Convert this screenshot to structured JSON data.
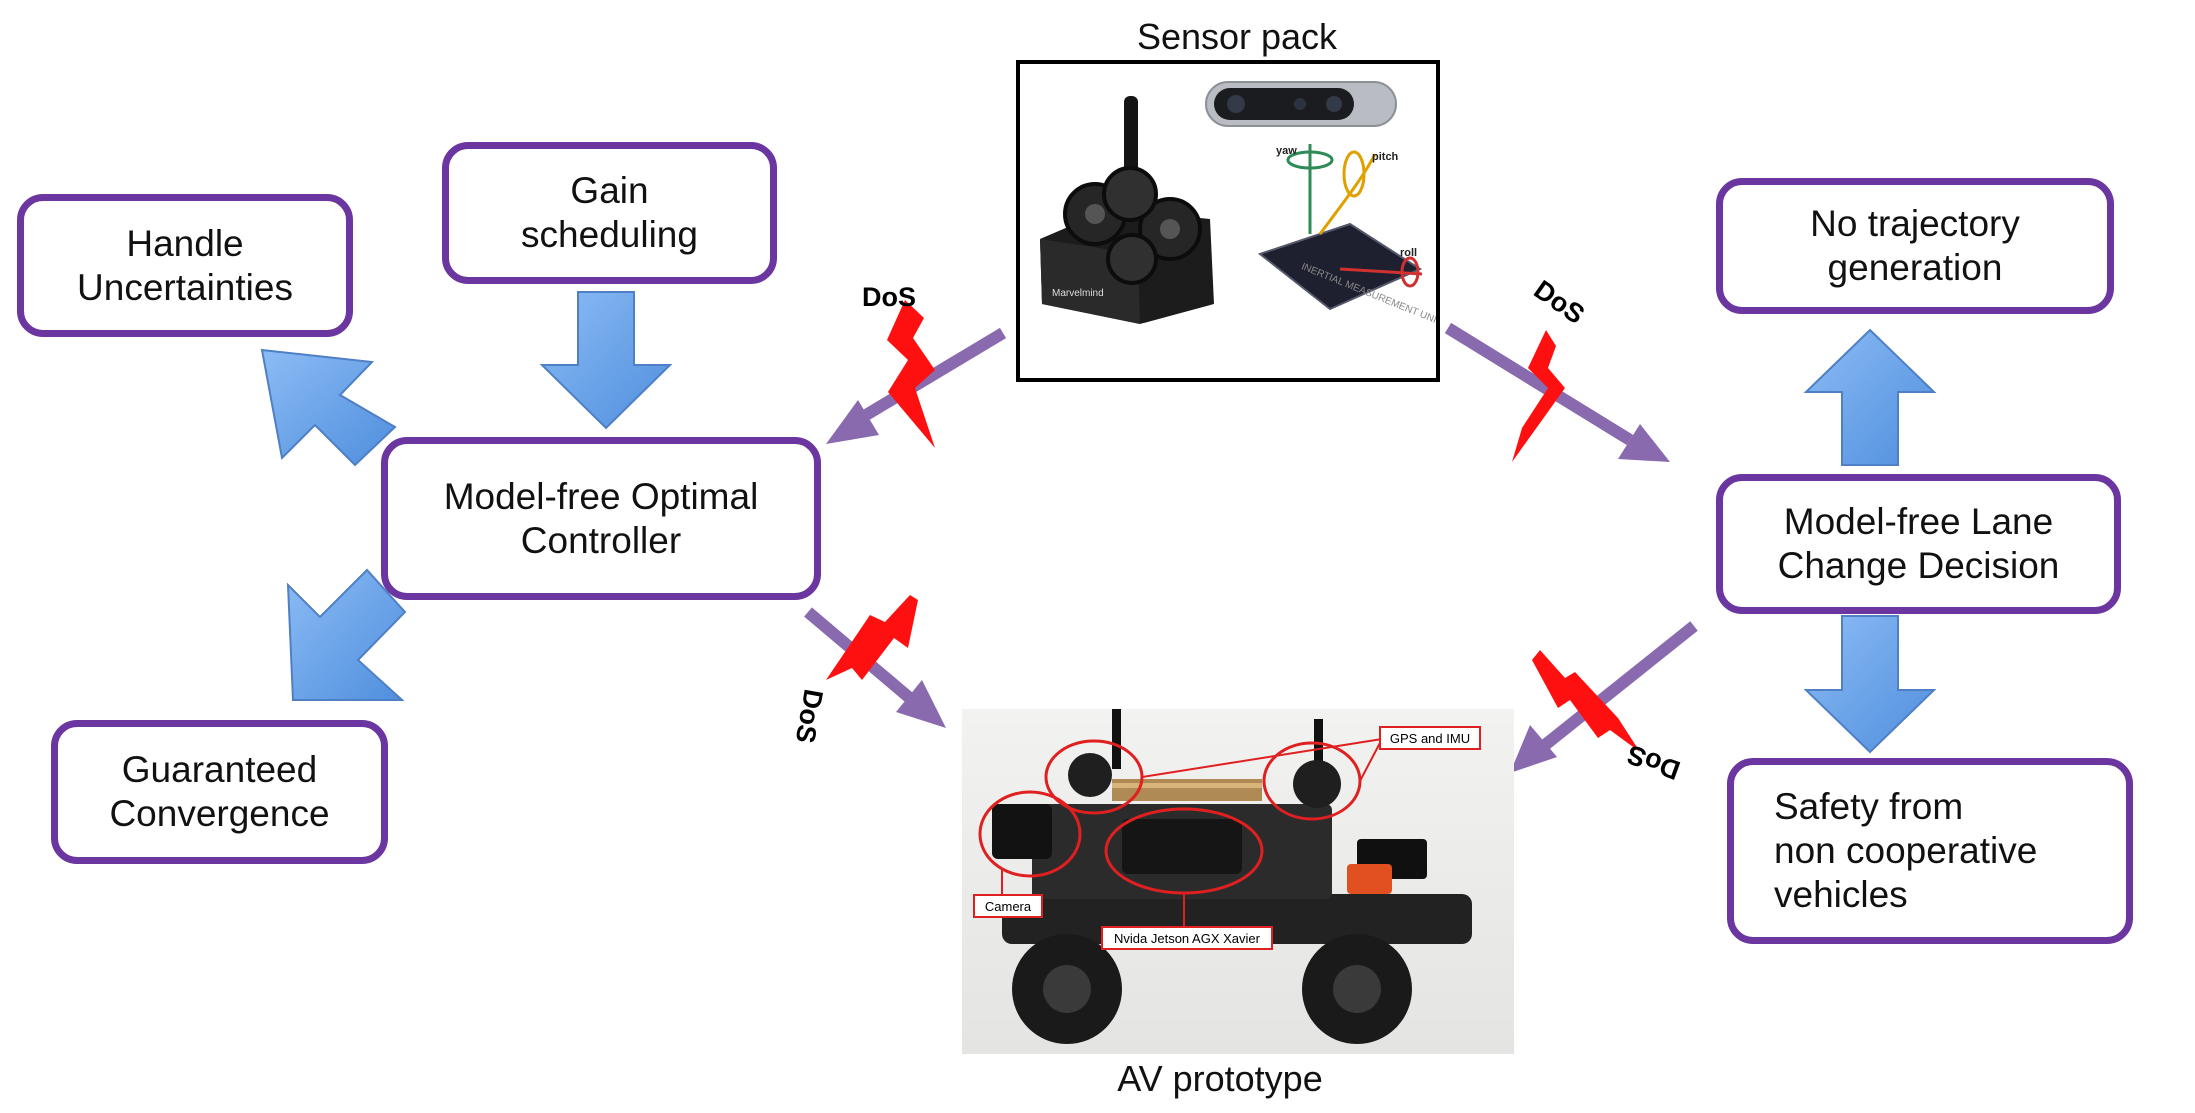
{
  "boxes": {
    "handle_uncertainties": "Handle\nUncertainties",
    "gain_scheduling": "Gain\nscheduling",
    "optimal_controller": "Model-free Optimal\nController",
    "guaranteed_convergence": "Guaranteed\nConvergence",
    "no_trajectory": "No trajectory\ngeneration",
    "lane_change": "Model-free Lane\nChange Decision",
    "safety": "Safety from\nnon cooperative\nvehicles"
  },
  "sensor_pack": {
    "title": "Sensor pack",
    "imu_axis_labels": [
      "yaw",
      "pitch",
      "roll"
    ],
    "imu_chip_text": "INERTIAL MEASUREMENT UNIT",
    "beacon_brand": "Marvelmind"
  },
  "av_prototype": {
    "title": "AV prototype",
    "callouts": [
      "GPS and IMU",
      "Camera",
      "Nvida Jetson AGX Xavier"
    ]
  },
  "attack_label": "DoS",
  "colors": {
    "box_border": "#6b36a0",
    "block_arrow": "#6ea3e8",
    "connector": "#8a6aae",
    "attack": "#ff0000"
  }
}
